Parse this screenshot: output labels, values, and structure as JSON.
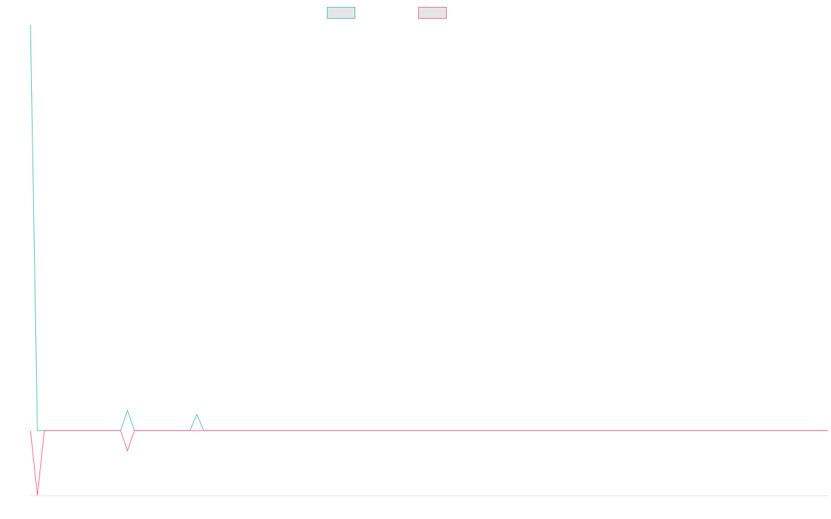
{
  "chart_data": {
    "type": "line",
    "title": "",
    "xlabel": "",
    "ylabel": "",
    "x": [
      0,
      1,
      2,
      3,
      4,
      5,
      6,
      7,
      8,
      9,
      10,
      11,
      12,
      13,
      14,
      15,
      16,
      17,
      18,
      19,
      20,
      21,
      22,
      23,
      24,
      25,
      26,
      27,
      28,
      29,
      30,
      31,
      32,
      33,
      34,
      35,
      36,
      37,
      38,
      39,
      40,
      41,
      42,
      43,
      44,
      45,
      46,
      47,
      48,
      49,
      50,
      51,
      52,
      53,
      54,
      55,
      56,
      57,
      58,
      59,
      60,
      61,
      62,
      63,
      64,
      65,
      66,
      67,
      68,
      69,
      70,
      71,
      72,
      73,
      74,
      75,
      76,
      77,
      78,
      79,
      80,
      81,
      82,
      83,
      84,
      85,
      86,
      87,
      88,
      89,
      90,
      91,
      92,
      93,
      94,
      95,
      96,
      97,
      98,
      99,
      100,
      101,
      102,
      103,
      104,
      105,
      106,
      107,
      108,
      109,
      110,
      111,
      112,
      113,
      114,
      115
    ],
    "series": [
      {
        "color": "#4bc0c0",
        "fill": "#e6e6e6",
        "values": [
          100,
          0,
          0,
          0,
          0,
          0,
          0,
          0,
          0,
          0,
          0,
          0,
          0,
          0,
          5,
          0,
          0,
          0,
          0,
          0,
          0,
          0,
          0,
          0,
          4,
          0,
          0,
          0,
          0,
          0,
          0,
          0,
          0,
          0,
          0,
          0,
          0,
          0,
          0,
          0,
          0,
          0,
          0,
          0,
          0,
          0,
          0,
          0,
          0,
          0,
          0,
          0,
          0,
          0,
          0,
          0,
          0,
          0,
          0,
          0,
          0,
          0,
          0,
          0,
          0,
          0,
          0,
          0,
          0,
          0,
          0,
          0,
          0,
          0,
          0,
          0,
          0,
          0,
          0,
          0,
          0,
          0,
          0,
          0,
          0,
          0,
          0,
          0,
          0,
          0,
          0,
          0,
          0,
          0,
          0,
          0,
          0,
          0,
          0,
          0,
          0,
          0,
          0,
          0,
          0,
          0,
          0,
          0,
          0,
          0,
          0,
          0,
          0,
          0,
          0,
          0
        ]
      },
      {
        "color": "#ff6384",
        "fill": "#e6e6e6",
        "values": [
          0,
          -16,
          0,
          0,
          0,
          0,
          0,
          0,
          0,
          0,
          0,
          0,
          0,
          0,
          -5,
          0,
          0,
          0,
          0,
          0,
          0,
          0,
          0,
          0,
          0,
          0,
          0,
          0,
          0,
          0,
          0,
          0,
          0,
          0,
          0,
          0,
          0,
          0,
          0,
          0,
          0,
          0,
          0,
          0,
          0,
          0,
          0,
          0,
          0,
          0,
          0,
          0,
          0,
          0,
          0,
          0,
          0,
          0,
          0,
          0,
          0,
          0,
          0,
          0,
          0,
          0,
          0,
          0,
          0,
          0,
          0,
          0,
          0,
          0,
          0,
          0,
          0,
          0,
          0,
          0,
          0,
          0,
          0,
          0,
          0,
          0,
          0,
          0,
          0,
          0,
          0,
          0,
          0,
          0,
          0,
          0,
          0,
          0,
          0,
          0,
          0,
          0,
          0,
          0,
          0,
          0,
          0,
          0,
          0,
          0,
          0,
          0,
          0,
          0,
          0,
          0
        ]
      }
    ],
    "xlim": [
      0,
      115
    ],
    "ylim": [
      -16,
      100
    ],
    "legend_position": "top",
    "grid": false,
    "x_axis_line": true,
    "y_axis_line": false
  }
}
